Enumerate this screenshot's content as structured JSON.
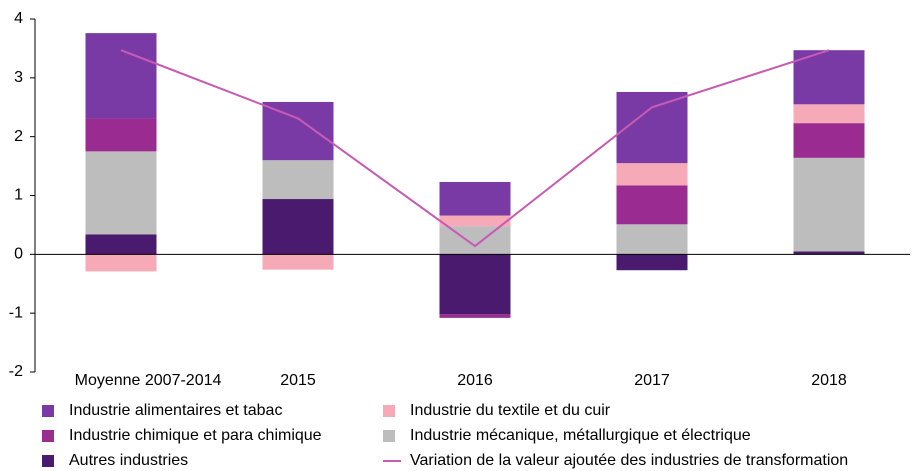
{
  "chart_data": {
    "type": "bar",
    "stacked": true,
    "categories": [
      "Moyenne 2007-2014",
      "2015",
      "2016",
      "2017",
      "2018"
    ],
    "series": [
      {
        "name": "Industrie alimentaires et tabac",
        "color": "#7a3aa6",
        "values": [
          1.45,
          0.99,
          0.57,
          1.21,
          0.92
        ]
      },
      {
        "name": "Industrie du textile et du cuir",
        "color": "#f6aab8",
        "values": [
          -0.29,
          -0.26,
          0.18,
          0.38,
          0.32
        ]
      },
      {
        "name": "Industrie chimique et para chimique",
        "color": "#9a2b91",
        "values": [
          0.56,
          0,
          -0.06,
          0.66,
          0.59
        ]
      },
      {
        "name": "Industrie mécanique, métallurgique et électrique",
        "color": "#bdbdbd",
        "values": [
          1.41,
          0.66,
          0.48,
          0.51,
          1.59
        ]
      },
      {
        "name": "Autres industries",
        "color": "#4a1a6e",
        "values": [
          0.34,
          0.94,
          -1.02,
          -0.27,
          0.05
        ]
      },
      {
        "name": "Variation de la valeur ajoutée des industries de transformation",
        "type": "line",
        "color": "#c75bb4",
        "values": [
          3.47,
          2.31,
          0.14,
          2.5,
          3.47
        ]
      }
    ],
    "ylim": [
      -2,
      4
    ],
    "yticks": [
      -2,
      -1,
      0,
      1,
      2,
      3,
      4
    ],
    "grid": false
  }
}
